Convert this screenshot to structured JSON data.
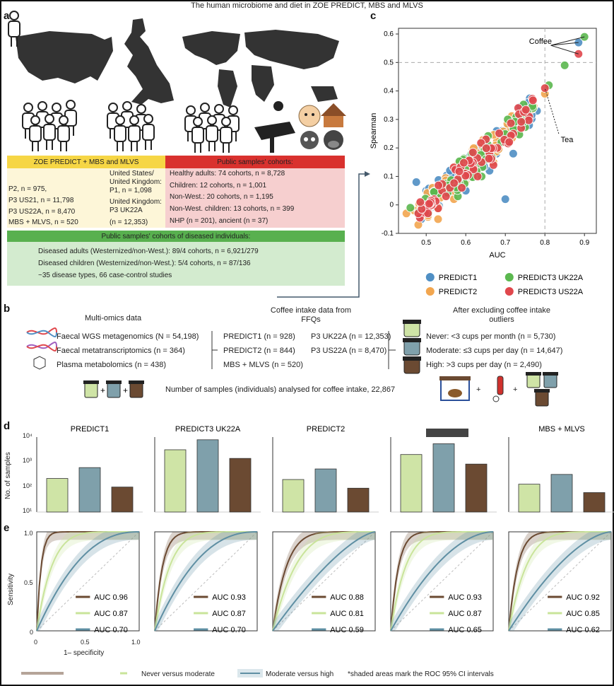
{
  "title": "The human microbiome and diet in ZOE PREDICT, MBS and MLVS",
  "panel_a": {
    "letter": "a",
    "zoe_header": "ZOE PREDICT + MBS and MLVS",
    "zoe_col1": [
      "P2, n = 975,",
      "P3 US21, n = 11,798",
      "P3 US22A, n = 8,470",
      "MBS + MLVS, n = 520"
    ],
    "zoe_col2": [
      "United States/",
      "United Kingdom:",
      "P1, n = 1,098",
      "United Kingdom:",
      "P3 UK22A",
      "(n = 12,353)"
    ],
    "public_header": "Public samples' cohorts:",
    "public_lines": [
      "Healthy adults: 74 cohorts, n = 8,728",
      "Children: 12 cohorts, n = 1,001",
      "Non-West.: 20 cohorts, n = 1,195",
      "Non-West. children: 13 cohorts, n = 399",
      "NHP (n = 201), ancient (n = 37)"
    ],
    "diseased_header": "Public samples' cohorts of diseased individuals:",
    "diseased_lines": [
      "Diseased adults (Westernized/non-West.): 89/4 cohorts, n = 6,921/279",
      "Diseased children (Westernized/non-West.): 5/4 cohorts, n = 87/136",
      "~35 disease types, 66 case-control studies"
    ]
  },
  "panel_b": {
    "letter": "b",
    "multiomics_title": "Multi-omics data",
    "multiomics": [
      "Faecal WGS metagenomics (N = 54,198)",
      "Faecal metatranscriptomics (n = 364)",
      "Plasma metabolomics (n = 438)"
    ],
    "coffee_title_1": "Coffee intake data from",
    "coffee_title_2": "FFQs",
    "coffee_col1": [
      "PREDICT1 (n = 928)",
      "PREDICT2 (n = 844)",
      "MBS + MLVS (n = 520)"
    ],
    "coffee_col2": [
      "P3 UK22A (n = 12,353)",
      "P3 US22A (n = 8,470)"
    ],
    "excl_title_1": "After excluding coffee intake",
    "excl_title_2": "outliers",
    "excl_lines": [
      "Never: <3 cups per month (n = 5,730)",
      "Moderate: ≤3 cups per day (n = 14,647)",
      "High: >3 cups per day (n = 2,490)"
    ],
    "total": "Number of samples (individuals) analysed for coffee intake, 22,867",
    "plus": "+"
  },
  "panel_c": {
    "letter": "c",
    "coffee_label": "Coffee",
    "tea_label": "Tea",
    "legend": [
      "PREDICT1",
      "PREDICT2",
      "PREDICT3 UK22A",
      "PREDICT3 US22A"
    ]
  },
  "panel_d": {
    "letter": "d",
    "ylabel": "No. of samples",
    "yticks": [
      "10⁴",
      "10³",
      "10²",
      "10¹"
    ],
    "colors": {
      "never": "#cfe4a6",
      "moderate": "#7fa0ab",
      "high": "#6b4a32"
    }
  },
  "panel_e": {
    "letter": "e",
    "ylabel": "Sensitivity",
    "xlabel": "1– specificity",
    "yticks": [
      "1.0",
      "0.5",
      "0"
    ],
    "xticks": [
      "0",
      "0.5",
      "1.0"
    ],
    "colors": {
      "high": "#6b4a32",
      "never": "#c9e49a",
      "moderate": "#5f8fa3"
    }
  },
  "legend_bottom": {
    "never_vs_moderate": "Never versus moderate",
    "moderate_vs_high": "Moderate versus high",
    "note": "*shaded areas mark the ROC 95% CI intervals"
  },
  "chart_data": [
    {
      "type": "scatter",
      "title": "",
      "xlabel": "AUC",
      "ylabel": "Spearman",
      "xlim": [
        0.43,
        0.93
      ],
      "ylim": [
        -0.1,
        0.62
      ],
      "xticks": [
        0.5,
        0.6,
        0.7,
        0.8,
        0.9
      ],
      "yticks": [
        -0.1,
        0,
        0.1,
        0.2,
        0.3,
        0.4,
        0.5,
        0.6
      ],
      "reference_lines": {
        "x": 0.8,
        "y": 0.5
      },
      "series": [
        {
          "name": "PREDICT1",
          "color": "#4f8fc4",
          "points": [
            [
              0.475,
              0.08
            ],
            [
              0.52,
              0.02
            ],
            [
              0.55,
              0.1
            ],
            [
              0.6,
              0.05
            ],
            [
              0.63,
              0.2
            ],
            [
              0.66,
              0.12
            ],
            [
              0.7,
              0.02
            ],
            [
              0.72,
              0.18
            ],
            [
              0.76,
              0.28
            ],
            [
              0.78,
              0.33
            ],
            [
              0.885,
              0.57
            ],
            [
              0.5,
              0.05
            ],
            [
              0.58,
              0.13
            ],
            [
              0.65,
              0.22
            ],
            [
              0.73,
              0.25
            ]
          ]
        },
        {
          "name": "PREDICT2",
          "color": "#f2a64f",
          "points": [
            [
              0.45,
              -0.03
            ],
            [
              0.48,
              -0.07
            ],
            [
              0.5,
              0.01
            ],
            [
              0.53,
              -0.05
            ],
            [
              0.56,
              0.04
            ],
            [
              0.59,
              0.08
            ],
            [
              0.62,
              0.12
            ],
            [
              0.65,
              0.17
            ],
            [
              0.68,
              0.2
            ],
            [
              0.71,
              0.26
            ],
            [
              0.75,
              0.3
            ],
            [
              0.8,
              0.39
            ],
            [
              0.47,
              -0.02
            ],
            [
              0.52,
              0.03
            ],
            [
              0.57,
              0.02
            ],
            [
              0.61,
              0.14
            ],
            [
              0.67,
              0.15
            ]
          ]
        },
        {
          "name": "PREDICT3 UK22A",
          "color": "#5bb84f",
          "points": [
            [
              0.46,
              -0.01
            ],
            [
              0.49,
              0.0
            ],
            [
              0.53,
              0.04
            ],
            [
              0.56,
              0.07
            ],
            [
              0.6,
              0.1
            ],
            [
              0.63,
              0.15
            ],
            [
              0.66,
              0.19
            ],
            [
              0.69,
              0.22
            ],
            [
              0.72,
              0.27
            ],
            [
              0.74,
              0.3
            ],
            [
              0.77,
              0.34
            ],
            [
              0.81,
              0.42
            ],
            [
              0.85,
              0.49
            ],
            [
              0.9,
              0.59
            ],
            [
              0.58,
              0.03
            ],
            [
              0.64,
              0.1
            ]
          ]
        },
        {
          "name": "PREDICT3 US22A",
          "color": "#e0474c",
          "points": [
            [
              0.5,
              0.0
            ],
            [
              0.52,
              0.02
            ],
            [
              0.54,
              0.05
            ],
            [
              0.56,
              0.06
            ],
            [
              0.58,
              0.09
            ],
            [
              0.6,
              0.11
            ],
            [
              0.62,
              0.13
            ],
            [
              0.64,
              0.15
            ],
            [
              0.66,
              0.18
            ],
            [
              0.68,
              0.2
            ],
            [
              0.7,
              0.22
            ],
            [
              0.72,
              0.25
            ],
            [
              0.74,
              0.27
            ],
            [
              0.76,
              0.31
            ],
            [
              0.8,
              0.41
            ],
            [
              0.885,
              0.53
            ],
            [
              0.55,
              0.03
            ],
            [
              0.59,
              0.06
            ],
            [
              0.63,
              0.1
            ],
            [
              0.67,
              0.14
            ]
          ]
        }
      ],
      "legend": [
        "PREDICT1",
        "PREDICT2",
        "PREDICT3 UK22A",
        "PREDICT3 US22A"
      ]
    },
    {
      "type": "bar",
      "title": "PREDICT1",
      "categories": [
        "Never",
        "Moderate",
        "High"
      ],
      "values": [
        220,
        600,
        100
      ],
      "yscale": "log",
      "ylim": [
        10,
        10000
      ],
      "ylabel": "No. of samples"
    },
    {
      "type": "bar",
      "title": "PREDICT3 UK22A",
      "categories": [
        "Never",
        "Moderate",
        "High"
      ],
      "values": [
        3100,
        7800,
        1400
      ],
      "yscale": "log",
      "ylim": [
        10,
        10000
      ]
    },
    {
      "type": "bar",
      "title": "PREDICT2",
      "categories": [
        "Never",
        "Moderate",
        "High"
      ],
      "values": [
        200,
        530,
        90
      ],
      "yscale": "log",
      "ylim": [
        10,
        10000
      ]
    },
    {
      "type": "bar",
      "title": "",
      "categories": [
        "Never",
        "Moderate",
        "High"
      ],
      "values": [
        2000,
        5400,
        830
      ],
      "yscale": "log",
      "ylim": [
        10,
        10000
      ]
    },
    {
      "type": "bar",
      "title": "MBS + MLVS",
      "categories": [
        "Never",
        "Moderate",
        "High"
      ],
      "values": [
        130,
        320,
        60
      ],
      "yscale": "log",
      "ylim": [
        10,
        10000
      ]
    },
    {
      "type": "line",
      "title": "",
      "xlabel": "1– specificity",
      "ylabel": "Sensitivity",
      "xlim": [
        0,
        1
      ],
      "ylim": [
        0,
        1
      ],
      "series": [
        {
          "name": "AUC 0.96",
          "group": "high",
          "auc": 0.96
        },
        {
          "name": "AUC 0.87",
          "group": "never",
          "auc": 0.87
        },
        {
          "name": "AUC 0.70",
          "group": "moderate",
          "auc": 0.7
        }
      ]
    },
    {
      "type": "line",
      "title": "",
      "xlim": [
        0,
        1
      ],
      "ylim": [
        0,
        1
      ],
      "series": [
        {
          "name": "AUC 0.93",
          "group": "high",
          "auc": 0.93
        },
        {
          "name": "AUC 0.87",
          "group": "never",
          "auc": 0.87
        },
        {
          "name": "AUC 0.70",
          "group": "moderate",
          "auc": 0.7
        }
      ]
    },
    {
      "type": "line",
      "title": "",
      "xlim": [
        0,
        1
      ],
      "ylim": [
        0,
        1
      ],
      "series": [
        {
          "name": "AUC 0.88",
          "group": "high",
          "auc": 0.88
        },
        {
          "name": "AUC 0.81",
          "group": "never",
          "auc": 0.81
        },
        {
          "name": "AUC 0.59",
          "group": "moderate",
          "auc": 0.59
        }
      ]
    },
    {
      "type": "line",
      "title": "",
      "xlim": [
        0,
        1
      ],
      "ylim": [
        0,
        1
      ],
      "series": [
        {
          "name": "AUC 0.93",
          "group": "high",
          "auc": 0.93
        },
        {
          "name": "AUC 0.87",
          "group": "never",
          "auc": 0.87
        },
        {
          "name": "AUC 0.65",
          "group": "moderate",
          "auc": 0.65
        }
      ]
    },
    {
      "type": "line",
      "title": "",
      "xlim": [
        0,
        1
      ],
      "ylim": [
        0,
        1
      ],
      "series": [
        {
          "name": "AUC 0.92",
          "group": "high",
          "auc": 0.92
        },
        {
          "name": "AUC 0.85",
          "group": "never",
          "auc": 0.85
        },
        {
          "name": "AUC 0.62",
          "group": "moderate",
          "auc": 0.62
        }
      ]
    }
  ]
}
